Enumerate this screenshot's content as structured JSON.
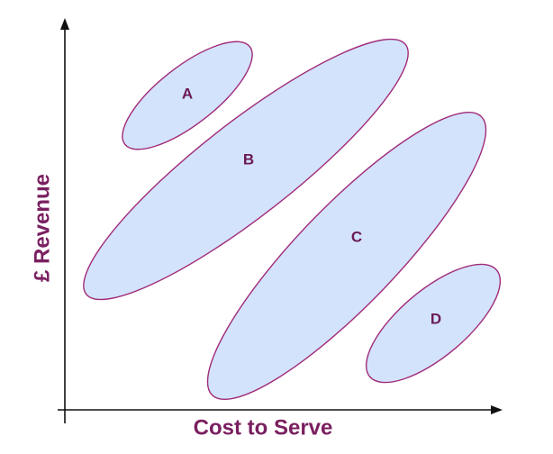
{
  "axes": {
    "x_title": "Cost to Serve",
    "y_title": "£ Revenue"
  },
  "segments": [
    {
      "label": "A"
    },
    {
      "label": "B"
    },
    {
      "label": "C"
    },
    {
      "label": "D"
    }
  ],
  "colors": {
    "segment_fill": "#d3e3fb",
    "segment_outline": "#a12b7a",
    "label_text": "#6b1a55",
    "axis_title_text": "#7a1f60",
    "axis_line": "#111111"
  }
}
